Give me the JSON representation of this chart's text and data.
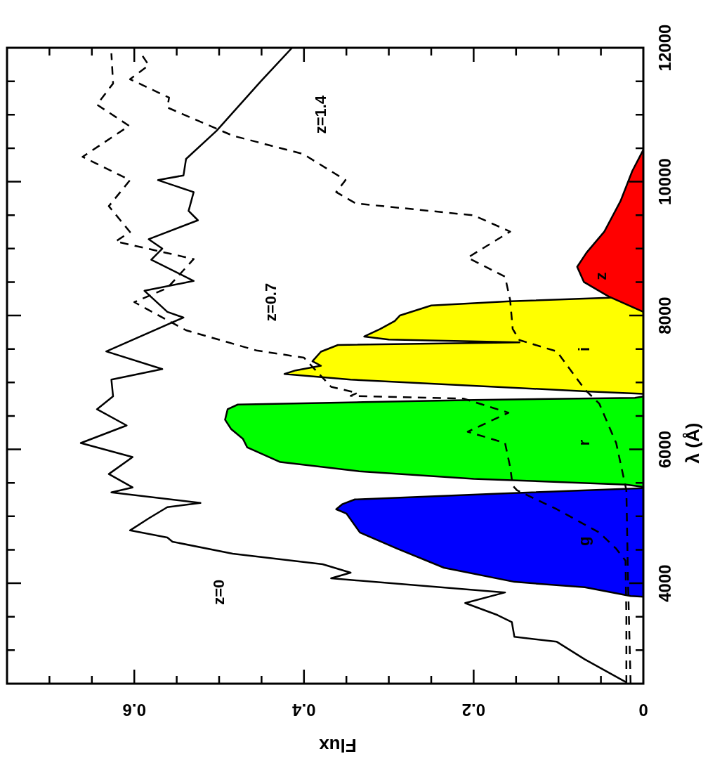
{
  "chart_data": {
    "type": "line",
    "xlabel": "Flux",
    "ylabel": "λ (Å)",
    "xlim": [
      0.75,
      0
    ],
    "ylim": [
      2500,
      12000
    ],
    "xticks": [
      0,
      {
        "value": 0.05,
        "label": null
      },
      {
        "value": 0.1,
        "label": null
      },
      {
        "value": 0.15,
        "label": null
      },
      0.2,
      {
        "value": 0.25,
        "label": null
      },
      {
        "value": 0.3,
        "label": null
      },
      {
        "value": 0.35,
        "label": null
      },
      0.4,
      {
        "value": 0.45,
        "label": null
      },
      {
        "value": 0.5,
        "label": null
      },
      {
        "value": 0.55,
        "label": null
      },
      0.6,
      {
        "value": 0.65,
        "label": null
      },
      {
        "value": 0.7,
        "label": null
      },
      {
        "value": 0.75,
        "label": null
      }
    ],
    "yticks": [
      {
        "value": 2500,
        "label": null
      },
      {
        "value": 3000,
        "label": null
      },
      {
        "value": 3500,
        "label": null
      },
      4000,
      {
        "value": 4500,
        "label": null
      },
      {
        "value": 5000,
        "label": null
      },
      {
        "value": 5500,
        "label": null
      },
      6000,
      {
        "value": 6500,
        "label": null
      },
      {
        "value": 7000,
        "label": null
      },
      {
        "value": 7500,
        "label": null
      },
      8000,
      {
        "value": 8500,
        "label": null
      },
      {
        "value": 9000,
        "label": null
      },
      {
        "value": 9500,
        "label": null
      },
      10000,
      {
        "value": 10500,
        "label": null
      },
      {
        "value": 11000,
        "label": null
      },
      {
        "value": 11500,
        "label": null
      },
      12000
    ],
    "series": [
      {
        "type": "area",
        "color": "#0000ff",
        "values": [
          3800,
          3810,
          3940,
          4021,
          4232,
          4516,
          4758,
          5042,
          5106,
          5180,
          5253,
          5340,
          5421
        ],
        "x": [
          0,
          0.015,
          0.069,
          0.152,
          0.235,
          0.29,
          0.334,
          0.35,
          0.362,
          0.355,
          0.34,
          0.17,
          0
        ]
      },
      {
        "type": "area",
        "color": "#00ff00",
        "values": [
          5440,
          5474,
          5560,
          5674,
          5811,
          6032,
          6159,
          6306,
          6443,
          6600,
          6670,
          6706,
          6738,
          6770,
          6790
        ],
        "x": [
          0,
          0.02,
          0.2,
          0.335,
          0.428,
          0.467,
          0.472,
          0.486,
          0.493,
          0.49,
          0.478,
          0.33,
          0.2,
          0.01,
          0
        ]
      },
      {
        "type": "area",
        "color": "#ffff00",
        "values": [
          6830,
          6864,
          7043,
          7127,
          7180,
          7250,
          7317,
          7460,
          7560,
          7600,
          7640,
          7686,
          7800,
          7917,
          8000,
          8150,
          8212,
          8265,
          8320
        ],
        "x": [
          0,
          0.063,
          0.345,
          0.423,
          0.41,
          0.38,
          0.39,
          0.38,
          0.36,
          0.146,
          0.3,
          0.329,
          0.31,
          0.293,
          0.287,
          0.25,
          0.157,
          0.041,
          0
        ]
      },
      {
        "type": "area",
        "color": "#ff0000",
        "values": [
          8054,
          8286,
          8500,
          8728,
          8939,
          9254,
          9707,
          10160,
          10476
        ],
        "x": [
          0,
          0.041,
          0.07,
          0.078,
          0.067,
          0.046,
          0.027,
          0.013,
          0
        ]
      },
      {
        "type": "line",
        "color": "#000000",
        "line_style": "solid",
        "values": [
          2520,
          2863,
          3126,
          3200,
          3421,
          3526,
          3705,
          3863,
          4074,
          4158,
          4284,
          4442,
          4621,
          4684,
          4790,
          4969,
          5137,
          5200,
          5358,
          5432,
          5632,
          5885,
          6095,
          6358,
          6600,
          6793,
          7043,
          7200,
          7464,
          7970,
          8054,
          8370,
          8517,
          8833,
          9000,
          9140,
          9423,
          9563,
          9844,
          10023,
          10093,
          10339,
          10760,
          11497,
          12000
        ],
        "x": [
          0.02,
          0.069,
          0.102,
          0.152,
          0.155,
          0.172,
          0.21,
          0.163,
          0.368,
          0.345,
          0.378,
          0.484,
          0.555,
          0.561,
          0.605,
          0.583,
          0.561,
          0.522,
          0.627,
          0.602,
          0.63,
          0.602,
          0.663,
          0.609,
          0.644,
          0.625,
          0.627,
          0.567,
          0.633,
          0.542,
          0.561,
          0.588,
          0.53,
          0.58,
          0.567,
          0.583,
          0.525,
          0.536,
          0.53,
          0.572,
          0.542,
          0.539,
          0.503,
          0.451,
          0.414
        ]
      },
      {
        "type": "line",
        "color": "#000000",
        "line_style": "dashed",
        "values": [
          2500,
          3500,
          4337,
          4516,
          4758,
          5106,
          5390,
          5460,
          5737,
          6095,
          6264,
          6548,
          6759,
          6800,
          6843,
          6935,
          7370,
          7478,
          7780,
          7930,
          8200,
          8412,
          8844,
          9107,
          9247,
          9634,
          10023,
          10371,
          10834,
          11150,
          11466,
          11918
        ],
        "x": [
          0.02,
          0.02,
          0.021,
          0.032,
          0.052,
          0.102,
          0.149,
          0.154,
          0.157,
          0.163,
          0.207,
          0.159,
          0.212,
          0.345,
          0.337,
          0.368,
          0.4,
          0.456,
          0.539,
          0.561,
          0.6,
          0.561,
          0.53,
          0.622,
          0.605,
          0.63,
          0.605,
          0.661,
          0.606,
          0.644,
          0.625,
          0.627
        ]
      },
      {
        "type": "line",
        "color": "#000000",
        "line_style": "dashed",
        "values": [
          2500,
          4000,
          5390,
          6095,
          6685,
          6896,
          7464,
          7633,
          7800,
          8233,
          8580,
          8865,
          9254,
          9497,
          9675,
          9844,
          10023,
          10413,
          10687,
          11108,
          11256,
          11530,
          11740,
          11950
        ],
        "x": [
          0.015,
          0.018,
          0.02,
          0.032,
          0.052,
          0.069,
          0.102,
          0.146,
          0.154,
          0.157,
          0.163,
          0.207,
          0.157,
          0.2,
          0.339,
          0.362,
          0.351,
          0.401,
          0.484,
          0.561,
          0.559,
          0.605,
          0.583,
          0.594
        ]
      }
    ],
    "annotations": [
      "z=0",
      "z=0.7",
      "z=1.4",
      "g",
      "r",
      "i",
      "z"
    ]
  }
}
